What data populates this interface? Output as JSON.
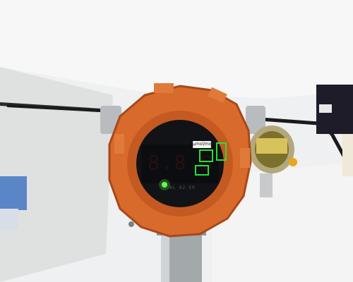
{
  "scene": {
    "description_free": true,
    "colors": {
      "ceiling": "#f6f6f6",
      "wall_panel": "#dcdcdc",
      "housing_orange": "#d86a2c",
      "housing_shadow": "#a8481a",
      "display_black": "#121316",
      "detection_box": "#22e03a",
      "indicator_led": "#5cff4a",
      "secondary_detector": "#8a7a3a",
      "pipe_metal": "#9aa0a4"
    },
    "unit_label": "µmol/mol",
    "display_digits": "8.8.8",
    "bottom_marks": "AL  A2  ER",
    "detections_count": 3
  }
}
